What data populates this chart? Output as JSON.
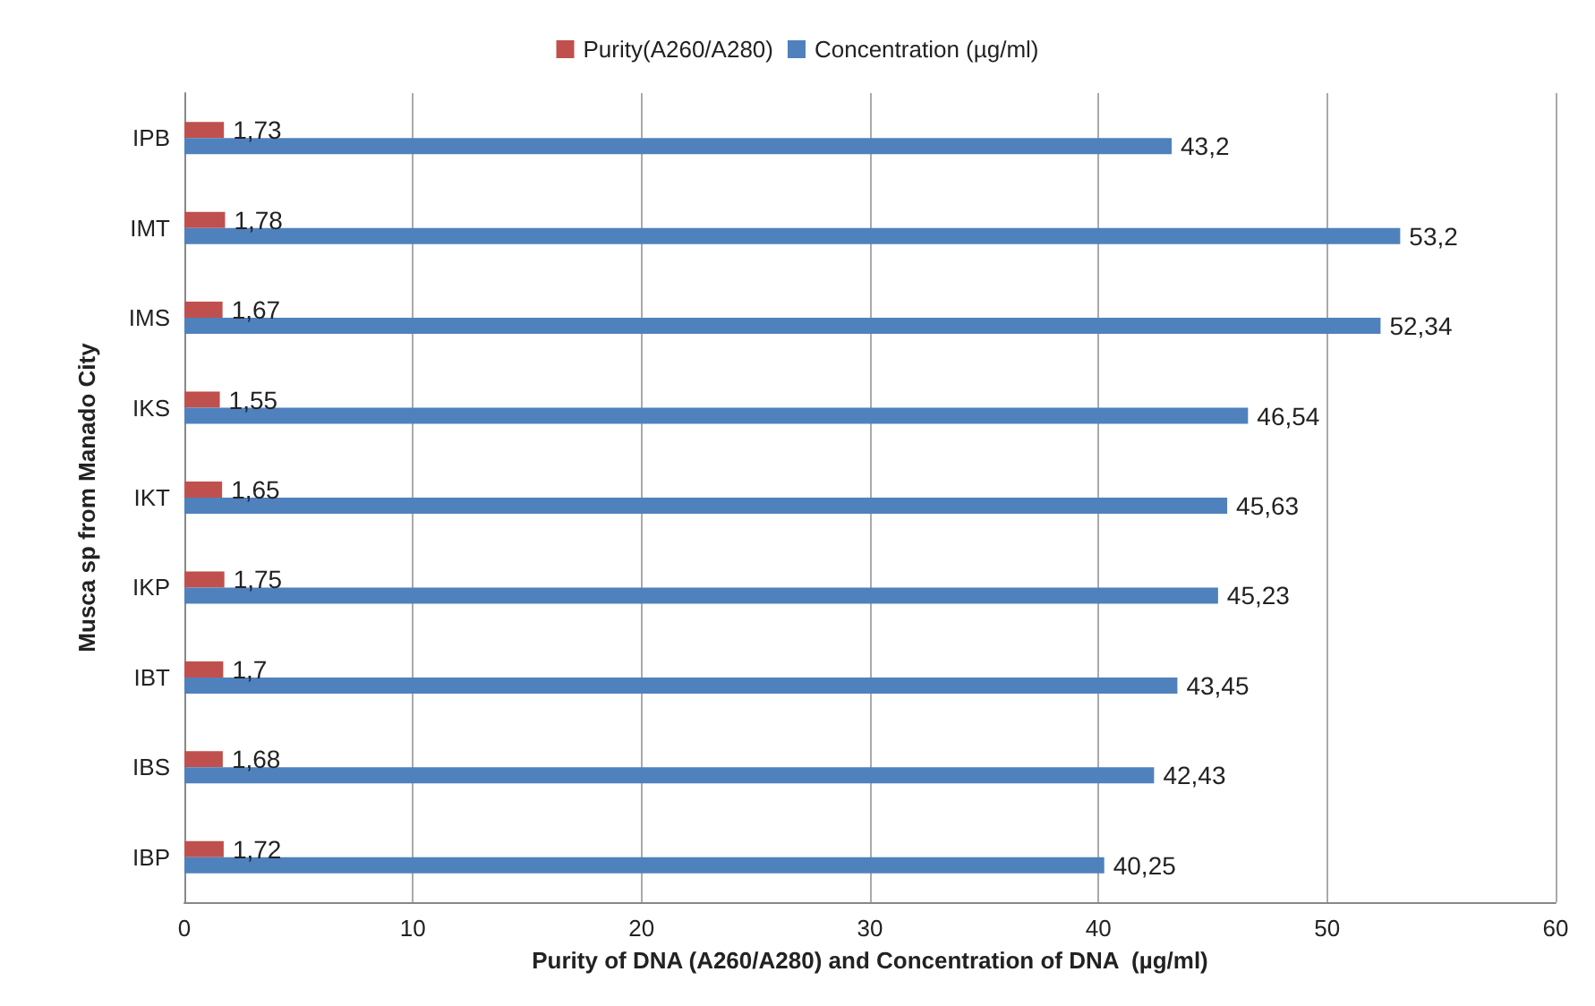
{
  "chart_data": {
    "type": "bar",
    "orientation": "horizontal",
    "xlabel": "Purity of DNA (A260/A280) and Concentration of DNA  (µg/ml)",
    "ylabel": "Musca sp from Manado City",
    "categories": [
      "IPB",
      "IMT",
      "IMS",
      "IKS",
      "IKT",
      "IKP",
      "IBT",
      "IBS",
      "IBP"
    ],
    "series": [
      {
        "name": "Purity(A260/A280)",
        "color": "#c0504d",
        "values": [
          1.73,
          1.78,
          1.67,
          1.55,
          1.65,
          1.75,
          1.7,
          1.68,
          1.72
        ],
        "value_labels": [
          "1,73",
          "1,78",
          "1,67",
          "1,55",
          "1,65",
          "1,75",
          "1,7",
          "1,68",
          "1,72"
        ]
      },
      {
        "name": "Concentration (µg/ml)",
        "color": "#4f81bd",
        "values": [
          43.2,
          53.2,
          52.34,
          46.54,
          45.63,
          45.23,
          43.45,
          42.43,
          40.25
        ],
        "value_labels": [
          "43,2",
          "53,2",
          "52,34",
          "46,54",
          "45,63",
          "45,23",
          "43,45",
          "42,43",
          "40,25"
        ]
      }
    ],
    "xlim": [
      0,
      60
    ],
    "xticks": [
      0,
      10,
      20,
      30,
      40,
      50,
      60
    ],
    "grid": "x",
    "legend": "top"
  }
}
